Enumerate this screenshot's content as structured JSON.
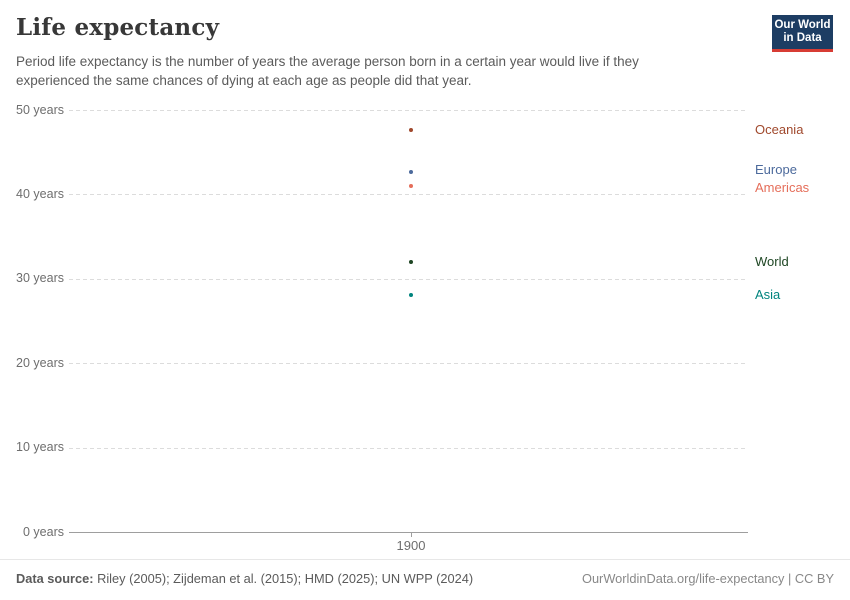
{
  "header": {
    "title": "Life expectancy",
    "subtitle_lines": [
      "Period life expectancy is the number of years the average person born in a certain year would live if they",
      "experienced the same chances of dying at each age as people did that year."
    ],
    "logo": {
      "line1": "Our World",
      "line2": "in Data",
      "bg_color": "#1d3d63",
      "stripe_color": "#d73c34"
    }
  },
  "chart_data": {
    "type": "scatter",
    "title": "Life expectancy",
    "xlabel": "",
    "ylabel": "years",
    "ylim": [
      0,
      50
    ],
    "grid": "dashed-horizontal",
    "legend_position": "right-inline-labels",
    "x": [
      1900
    ],
    "xticks": [
      {
        "value": 1900,
        "label": "1900"
      }
    ],
    "yticks": [
      {
        "value": 0,
        "label": "0 years"
      },
      {
        "value": 10,
        "label": "10 years"
      },
      {
        "value": 20,
        "label": "20 years"
      },
      {
        "value": 30,
        "label": "30 years"
      },
      {
        "value": 40,
        "label": "40 years"
      },
      {
        "value": 50,
        "label": "50 years"
      }
    ],
    "series": [
      {
        "name": "Oceania",
        "values": [
          47.6
        ],
        "color": "#a0492d"
      },
      {
        "name": "Europe",
        "values": [
          42.7
        ],
        "color": "#4c6a9c"
      },
      {
        "name": "Americas",
        "values": [
          41.0
        ],
        "color": "#e56e5a"
      },
      {
        "name": "World",
        "values": [
          32.0
        ],
        "color": "#1e4623"
      },
      {
        "name": "Asia",
        "values": [
          28.1
        ],
        "color": "#00847e"
      }
    ]
  },
  "footer": {
    "source_label": "Data source:",
    "source_text": " Riley (2005); Zijdeman et al. (2015); HMD (2025); UN WPP (2024)",
    "link_text": "OurWorldinData.org/life-expectancy | CC BY"
  }
}
